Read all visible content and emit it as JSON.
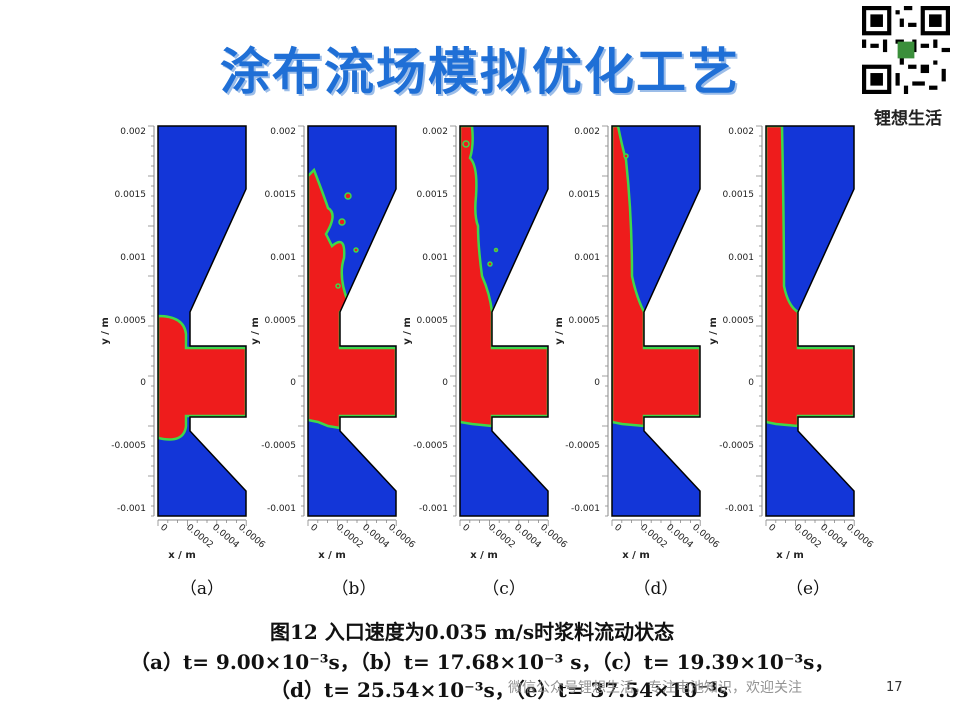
{
  "title": "涂布流场模拟优化工艺",
  "brand": "锂想生活",
  "axes": {
    "y_label": "y / m",
    "x_label": "x / m",
    "y_ticks": [
      "0.002",
      "0.0015",
      "0.001",
      "0.0005",
      "0",
      "-0.0005",
      "-0.001"
    ],
    "x_ticks": [
      "0",
      "0.0002",
      "0.0004",
      "0.0006"
    ]
  },
  "panels": [
    {
      "label": "（a）"
    },
    {
      "label": "（b）"
    },
    {
      "label": "（c）"
    },
    {
      "label": "（d）"
    },
    {
      "label": "（e）"
    }
  ],
  "caption": {
    "line1": "图12    入口速度为0.035 m/s时浆料流动状态",
    "line2": "（a）t= 9.00×10⁻³s，（b）t= 17.68×10⁻³ s，（c）t= 19.39×10⁻³s，",
    "line3": "（d）t= 25.54×10⁻³s，（e）t= 37.54×10⁻³s"
  },
  "watermark": "微信公众号锂想生活，专注电池知识，欢迎关注",
  "page_number": "17",
  "colors": {
    "title": "#1f6fd6",
    "liquid": "#ee1c1c",
    "gas": "#1336d8",
    "interface": "#3fd84a"
  }
}
